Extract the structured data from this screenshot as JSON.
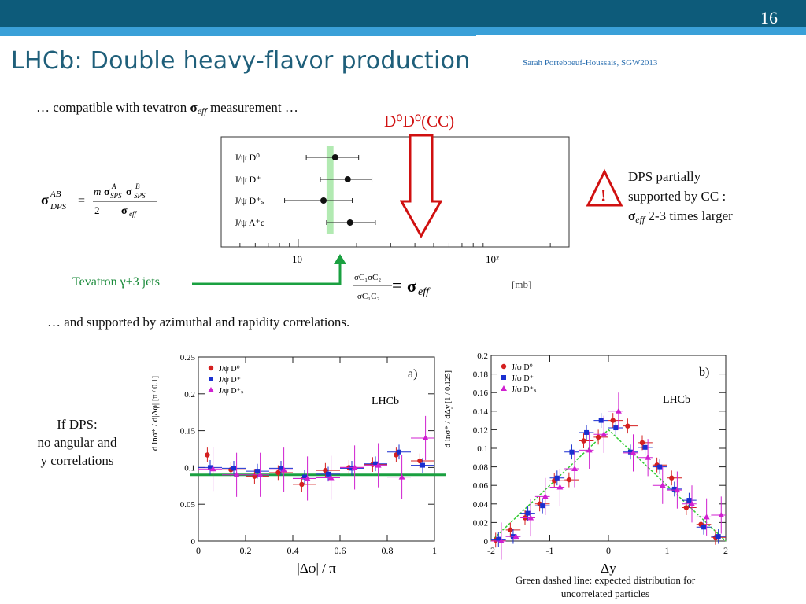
{
  "slide": {
    "page_number": "16",
    "title": "LHCb: Double heavy-flavor production",
    "author": "Sarah Porteboeuf-Houssais, SGW2013",
    "compat_text": "… compatible with tevatron",
    "compat_sigma": "σ",
    "compat_sub": "eff",
    "compat_tail": "measurement …",
    "d0d0_label": "D⁰D⁰(CC)",
    "dps_note_line1": "DPS partially",
    "dps_note_line2": "supported by CC :",
    "dps_note_sigma": "σ",
    "dps_note_sub": "eff",
    "dps_note_tail": "2-3 times larger",
    "warning_symbol": "!",
    "tevatron_label": "Tevatron γ+3 jets",
    "azimuthal_text": "… and supported by azimuthal and rapidity correlations.",
    "if_dps_line1": "If DPS:",
    "if_dps_line2": "no angular and",
    "if_dps_line3": "y correlations",
    "green_note": "Green dashed line: expected distribution for uncorrelated particles",
    "formula": {
      "lhs_sigma": "σ",
      "lhs_sup": "AB",
      "lhs_sub": "DPS",
      "equals": "=",
      "num_m": "m",
      "num_sigma1": "σ",
      "num_sup1": "A",
      "num_sub1": "SPS",
      "num_sigma2": "σ",
      "num_sup2": "B",
      "num_sub2": "SPS",
      "den_2": "2",
      "den_sigma": "σ",
      "den_sub": "eff"
    },
    "ratio": {
      "num": "σC₁σC₂",
      "den": "σC₁C₂",
      "equals": "=",
      "sigma": "σ",
      "sub": "eff",
      "unit": "[mb]"
    },
    "colors": {
      "header_dark": "#0d5b7a",
      "header_light": "#3aa0d8",
      "title": "#1f5f7a",
      "red": "#d01010",
      "green": "#1aa040",
      "band": "#9fe59f"
    }
  },
  "chart_data": [
    {
      "type": "scatter",
      "log_x": true,
      "xlim": [
        4,
        250
      ],
      "x_ticks": [
        10,
        100
      ],
      "x_tick_labels": [
        "10",
        "10²"
      ],
      "categories": [
        "J/ψ D⁰",
        "J/ψ D⁺",
        "J/ψ D⁺ₛ",
        "J/ψ Λ⁺c"
      ],
      "values": [
        15.5,
        18.0,
        13.5,
        18.5
      ],
      "errors_low": [
        4.5,
        5.0,
        5.0,
        4.5
      ],
      "errors_high": [
        5.0,
        6.0,
        5.5,
        6.5
      ],
      "tevatron_band": [
        14.0,
        15.2
      ]
    },
    {
      "type": "scatter",
      "panel": "a)",
      "experiment": "LHCb",
      "ylabel": "d lnσ* / d|Δφ|",
      "ylabel_unit": "[π / 0.1]",
      "xlabel": "|Δφ| / π",
      "xlim": [
        0,
        1
      ],
      "ylim": [
        0,
        0.25
      ],
      "x_ticks": [
        0,
        0.2,
        0.4,
        0.6,
        0.8,
        1
      ],
      "x_tick_labels": [
        "0",
        "0.2",
        "0.4",
        "0.6",
        "0.8",
        "1"
      ],
      "y_ticks": [
        0,
        0.05,
        0.1,
        0.15,
        0.2,
        0.25
      ],
      "y_tick_labels": [
        "0",
        "0.05",
        "0.1",
        "0.15",
        "0.2",
        "0.25"
      ],
      "x": [
        0.05,
        0.15,
        0.25,
        0.35,
        0.45,
        0.55,
        0.65,
        0.75,
        0.85,
        0.95
      ],
      "series": [
        {
          "name": "J/ψ D⁰",
          "color": "#d42020",
          "marker": "circle",
          "values": [
            0.117,
            0.097,
            0.088,
            0.093,
            0.077,
            0.096,
            0.1,
            0.104,
            0.117,
            0.109
          ]
        },
        {
          "name": "J/ψ D⁺",
          "color": "#1a2fd0",
          "marker": "square",
          "values": [
            0.1,
            0.099,
            0.095,
            0.099,
            0.087,
            0.091,
            0.099,
            0.105,
            0.121,
            0.103
          ]
        },
        {
          "name": "J/ψ D⁺ₛ",
          "color": "#d020d0",
          "marker": "triangle",
          "values": [
            0.098,
            0.09,
            0.09,
            0.097,
            0.085,
            0.086,
            0.1,
            0.103,
            0.087,
            0.14
          ]
        }
      ],
      "error_y": 0.01,
      "error_y_ds": 0.03,
      "reference_line": 0.09,
      "legend_position": "top-left"
    },
    {
      "type": "scatter",
      "panel": "b)",
      "experiment": "LHCb",
      "ylabel": "d lnσ* / dΔy",
      "ylabel_unit": "[1 / 0.125]",
      "xlabel": "Δy",
      "xlim": [
        -2,
        2
      ],
      "ylim": [
        0,
        0.2
      ],
      "x_ticks": [
        -2,
        -1,
        0,
        1,
        2
      ],
      "x_tick_labels": [
        "-2",
        "-1",
        "0",
        "1",
        "2"
      ],
      "y_ticks": [
        0,
        0.02,
        0.04,
        0.06,
        0.08,
        0.1,
        0.12,
        0.14,
        0.16,
        0.18,
        0.2
      ],
      "y_tick_labels": [
        "0",
        "0.02",
        "0.04",
        "0.06",
        "0.08",
        "0.1",
        "0.12",
        "0.14",
        "0.16",
        "0.18",
        "0.2"
      ],
      "x": [
        -1.875,
        -1.625,
        -1.375,
        -1.125,
        -0.875,
        -0.625,
        -0.375,
        -0.125,
        0.125,
        0.375,
        0.625,
        0.875,
        1.125,
        1.375,
        1.625,
        1.875
      ],
      "series": [
        {
          "name": "J/ψ D⁰",
          "color": "#d42020",
          "marker": "circle",
          "values": [
            0.001,
            0.012,
            0.025,
            0.04,
            0.065,
            0.066,
            0.108,
            0.112,
            0.13,
            0.124,
            0.106,
            0.082,
            0.068,
            0.036,
            0.018,
            0.004
          ]
        },
        {
          "name": "J/ψ D⁺",
          "color": "#1a2fd0",
          "marker": "square",
          "values": [
            0.002,
            0.005,
            0.03,
            0.038,
            0.068,
            0.096,
            0.117,
            0.13,
            0.122,
            0.096,
            0.101,
            0.08,
            0.056,
            0.044,
            0.015,
            0.005
          ]
        },
        {
          "name": "J/ψ D⁺ₛ",
          "color": "#d020d0",
          "marker": "triangle",
          "values": [
            0.0,
            0.005,
            0.025,
            0.048,
            0.058,
            0.078,
            0.098,
            0.115,
            0.14,
            0.095,
            0.09,
            0.06,
            0.055,
            0.04,
            0.026,
            0.028
          ]
        }
      ],
      "error_y": 0.008,
      "error_y_ds": 0.02,
      "reference_line_points": [
        [
          -2,
          0.0
        ],
        [
          0,
          0.12
        ],
        [
          2,
          0.0
        ]
      ],
      "legend_position": "top-left"
    }
  ]
}
